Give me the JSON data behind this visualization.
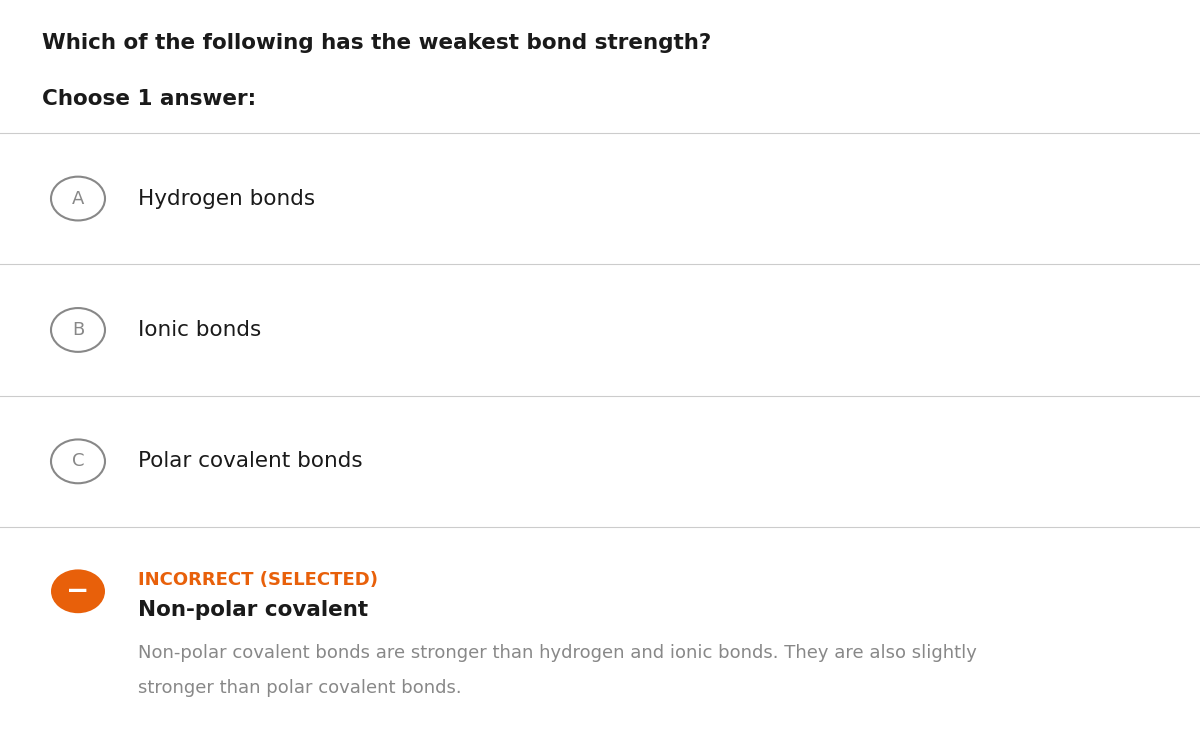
{
  "title": "Which of the following has the weakest bond strength?",
  "subtitle": "Choose 1 answer:",
  "background_color": "#ffffff",
  "title_color": "#1a1a1a",
  "subtitle_color": "#1a1a1a",
  "title_fontsize": 15.5,
  "subtitle_fontsize": 15.5,
  "options": [
    {
      "label": "A",
      "text": "Hydrogen bonds"
    },
    {
      "label": "B",
      "text": "Ionic bonds"
    },
    {
      "label": "C",
      "text": "Polar covalent bonds"
    }
  ],
  "selected_option": {
    "text": "Non-polar covalent",
    "status": "INCORRECT (SELECTED)",
    "status_color": "#e8600a",
    "icon_color": "#e8600a",
    "icon_symbol": "−",
    "explanation_line1": "Non-polar covalent bonds are stronger than hydrogen and ionic bonds. They are also slightly",
    "explanation_line2": "stronger than polar covalent bonds.",
    "explanation_color": "#888888"
  },
  "option_label_circle_color": "#888888",
  "option_label_text_color": "#888888",
  "option_text_color": "#1a1a1a",
  "divider_color": "#cccccc",
  "option_text_fontsize": 15.5,
  "label_fontsize": 13
}
